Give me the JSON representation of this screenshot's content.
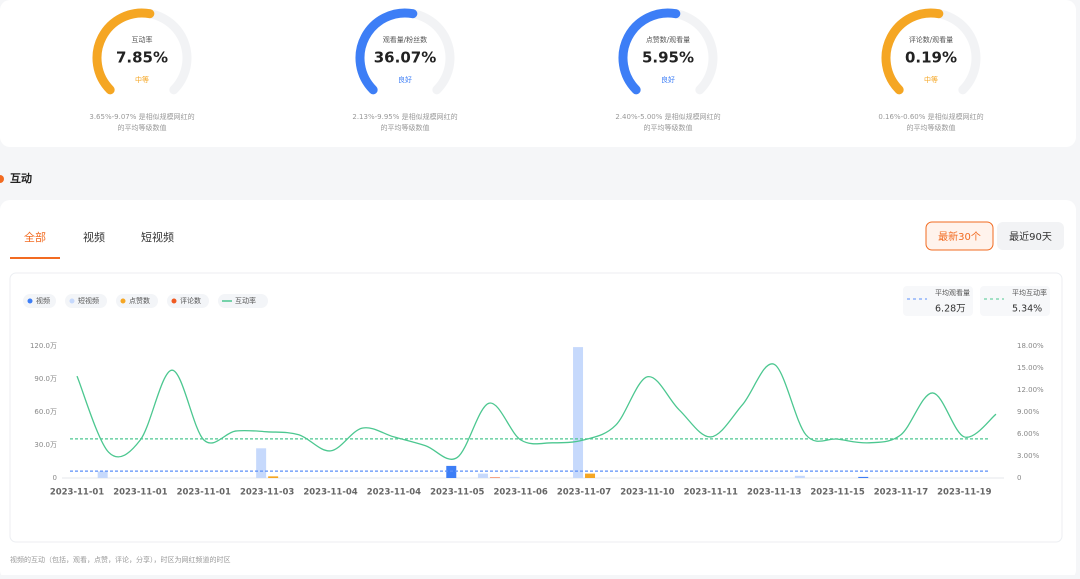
{
  "gauges": [
    {
      "label": "互动率",
      "value": "7.85%",
      "rating": "中等",
      "color": "#f5a623",
      "desc": [
        "3.65%-9.07% 是相似规模网红的",
        "的平均等级数值"
      ]
    },
    {
      "label": "观看量/粉丝数",
      "value": "36.07%",
      "rating": "良好",
      "color": "#3d7ef6",
      "desc": [
        "2.13%-9.95% 是相似规模网红的",
        "的平均等级数值"
      ]
    },
    {
      "label": "点赞数/观看量",
      "value": "5.95%",
      "rating": "良好",
      "color": "#3d7ef6",
      "desc": [
        "2.40%-5.00% 是相似规模网红的",
        "的平均等级数值"
      ]
    },
    {
      "label": "评论数/观看量",
      "value": "0.19%",
      "rating": "中等",
      "color": "#f5a623",
      "desc": [
        "0.16%-0.60% 是相似规模网红的",
        "的平均等级数值"
      ]
    }
  ],
  "section_title": "互动",
  "tabs": [
    "全部",
    "视频",
    "短视频"
  ],
  "range_buttons": [
    "最新30个",
    "最近90天"
  ],
  "footnote": "视频的互动（包括，观看，点赞，评论，分享），时区为网红频道的时区",
  "chart_data": {
    "type": "combo",
    "categories": [
      "2023-11-01",
      null,
      "2023-11-01",
      null,
      "2023-11-01",
      null,
      "2023-11-03",
      null,
      "2023-11-04",
      null,
      "2023-11-04",
      null,
      "2023-11-05",
      null,
      "2023-11-06",
      null,
      "2023-11-07",
      null,
      "2023-11-10",
      null,
      "2023-11-11",
      null,
      "2023-11-13",
      null,
      "2023-11-15",
      null,
      "2023-11-17",
      null,
      "2023-11-19",
      null
    ],
    "series": [
      {
        "name": "视频",
        "type": "bar",
        "color": "#3d7ef6",
        "values": [
          0,
          0,
          0,
          0,
          0,
          0,
          0,
          0,
          0,
          0,
          0,
          0,
          11,
          0,
          0,
          0,
          0,
          0,
          0,
          0,
          0,
          0,
          0,
          0,
          0,
          1,
          0,
          0,
          0,
          0
        ]
      },
      {
        "name": "短视频",
        "type": "bar",
        "color": "#c6d9fc",
        "values": [
          0,
          6,
          0,
          0,
          0,
          0,
          27,
          0,
          0,
          0,
          0,
          0,
          0,
          4,
          1,
          0,
          119,
          0,
          0,
          0,
          0,
          0,
          0,
          2,
          0,
          0,
          0,
          0,
          0,
          0
        ]
      },
      {
        "name": "点赞数",
        "type": "bar",
        "color": "#f5a623",
        "values": [
          0,
          0,
          0,
          0,
          0,
          0,
          1.5,
          0,
          0,
          0,
          0,
          0,
          0,
          0,
          0,
          0,
          4,
          0,
          0,
          0,
          0,
          0,
          0,
          0,
          0,
          0,
          0,
          0,
          0,
          0
        ]
      },
      {
        "name": "评论数",
        "type": "bar",
        "color": "#f05a22",
        "values": [
          0,
          0,
          0,
          0,
          0,
          0,
          0,
          0,
          0,
          0,
          0,
          0,
          0,
          0.5,
          0,
          0,
          0,
          0,
          0,
          0,
          0,
          0,
          0,
          0,
          0,
          0,
          0,
          0,
          0,
          0
        ]
      },
      {
        "name": "互动率",
        "type": "line",
        "axis": "y2",
        "color": "#4cc790",
        "values": [
          13.9,
          3.5,
          5.2,
          14.7,
          5.2,
          6.4,
          6.3,
          5.9,
          3.7,
          6.8,
          5.6,
          4.4,
          2.8,
          10.2,
          5.2,
          4.8,
          5.2,
          7.2,
          13.8,
          9.3,
          5.6,
          10.0,
          15.5,
          5.9,
          5.3,
          4.8,
          5.9,
          11.6,
          5.6,
          8.7
        ]
      }
    ],
    "ylim": [
      0,
      120
    ],
    "yticks": [
      0,
      {
        "value": 30,
        "label": "30.0万"
      },
      {
        "value": 60,
        "label": "60.0万"
      },
      {
        "value": 90,
        "label": "90.0万"
      },
      {
        "value": 120,
        "label": "120.0万"
      }
    ],
    "y2lim": [
      0,
      18
    ],
    "y2ticks": [
      0,
      {
        "value": 3,
        "label": "3.00%"
      },
      {
        "value": 6,
        "label": "6.00%"
      },
      {
        "value": 9,
        "label": "9.00%"
      },
      {
        "value": 12,
        "label": "12.00%"
      },
      {
        "value": 15,
        "label": "15.00%"
      },
      {
        "value": 18,
        "label": "18.00%"
      }
    ],
    "averages": [
      {
        "name": "平均观看量",
        "value": 6.28,
        "value_label": "6.28万",
        "color": "#5b8ff9"
      },
      {
        "name": "平均互动率",
        "value": 5.34,
        "value_label": "5.34%",
        "axis": "y2",
        "color": "#4cc790"
      }
    ]
  }
}
